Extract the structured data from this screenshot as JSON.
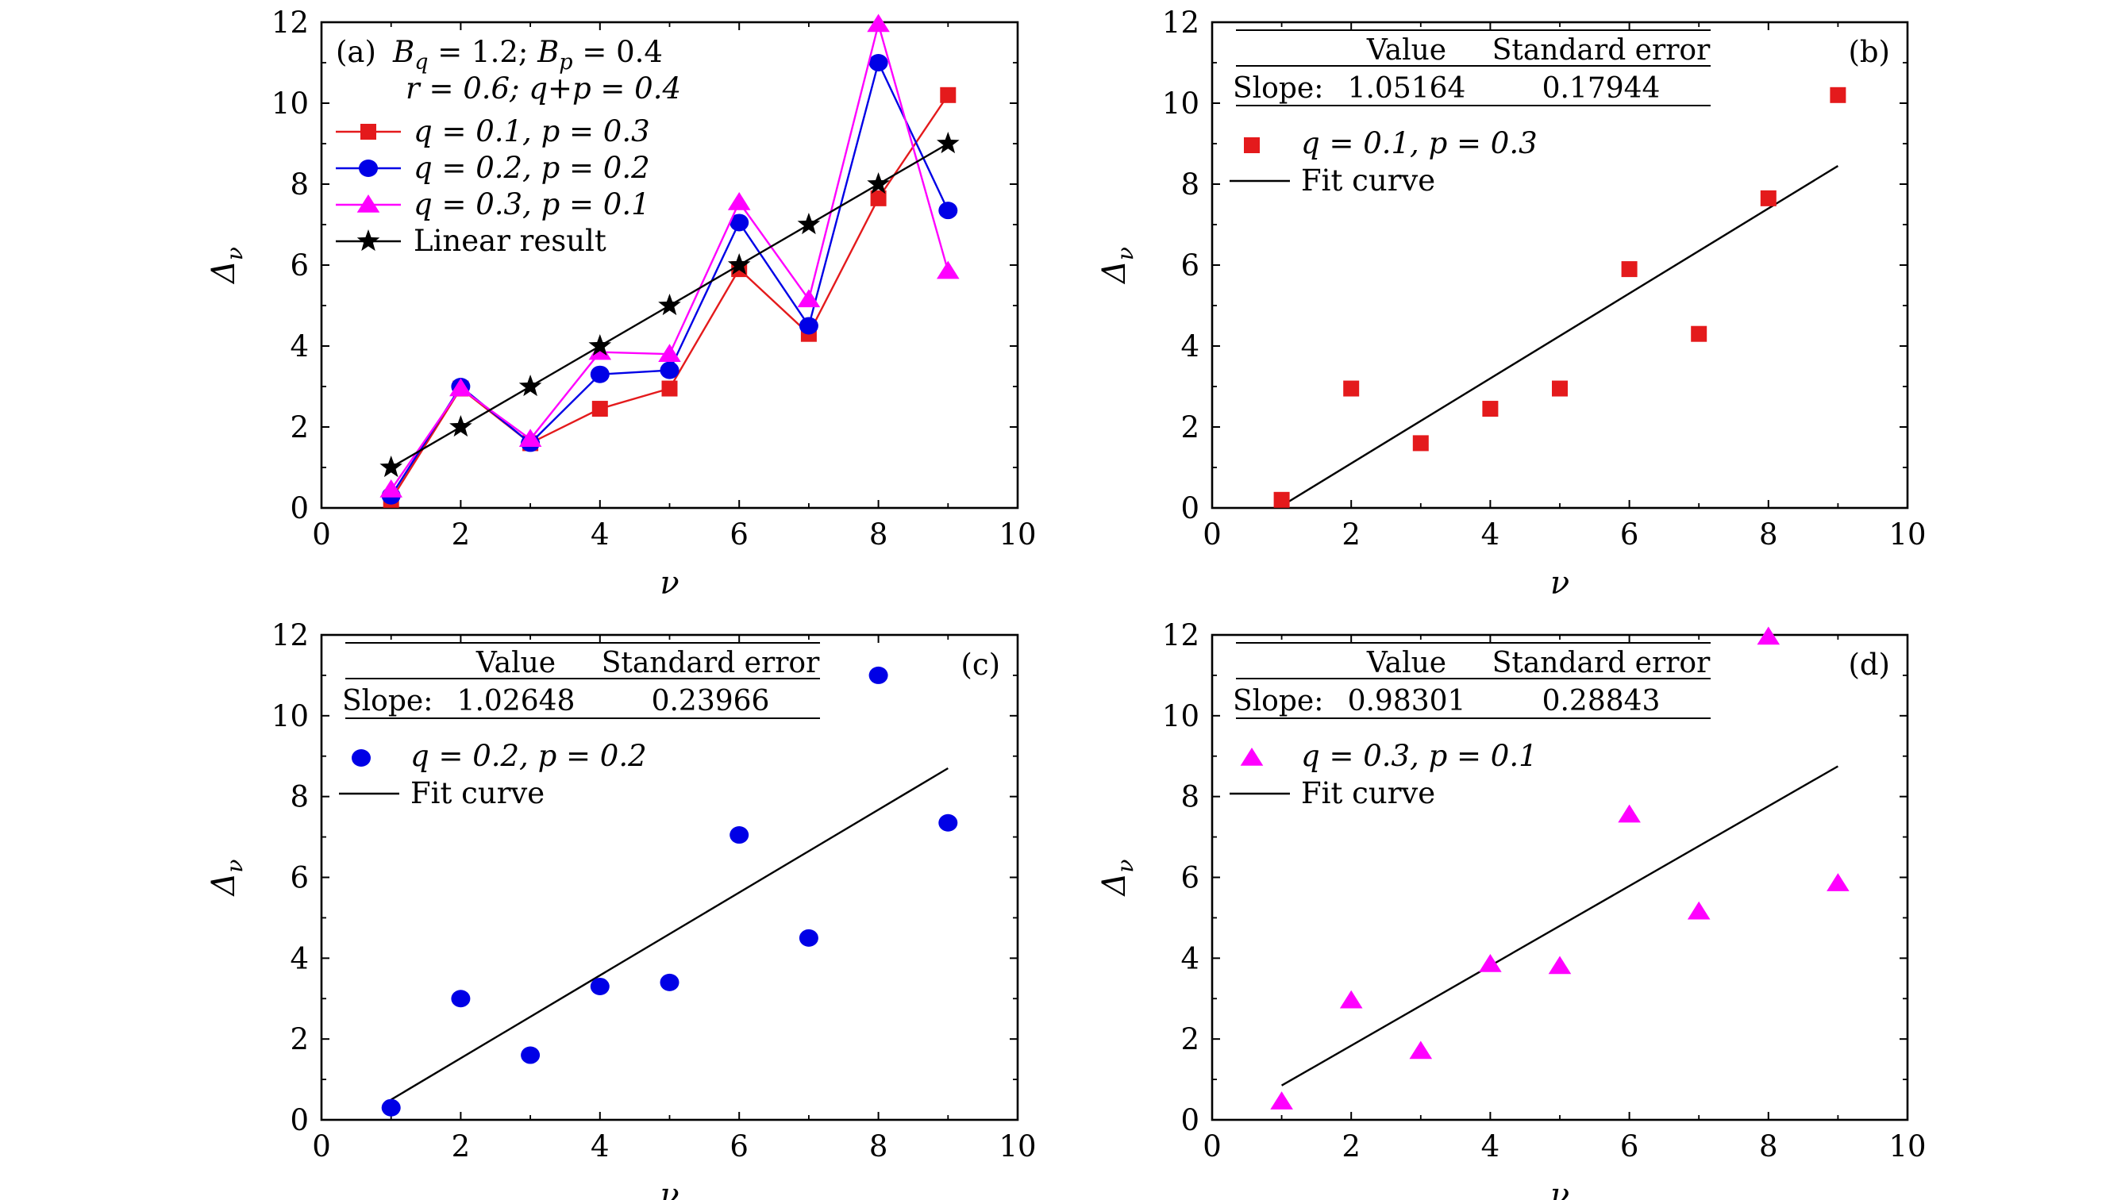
{
  "figure": {
    "panels": [
      {
        "tag": "(a)",
        "params_line1": "Bq = 1.2; Bp = 0.4",
        "params_line2": "r = 0.6; q+p = 0.4"
      },
      {
        "tag": "(b)",
        "table": {
          "col1": "Value",
          "col2": "Standard error",
          "row_label": "Slope:",
          "value": "1.05164",
          "error": "0.17944"
        },
        "legend": {
          "series": "q = 0.1, p = 0.3",
          "fit": "Fit curve"
        }
      },
      {
        "tag": "(c)",
        "table": {
          "col1": "Value",
          "col2": "Standard error",
          "row_label": "Slope:",
          "value": "1.02648",
          "error": "0.23966"
        },
        "legend": {
          "series": "q = 0.2, p = 0.2",
          "fit": "Fit curve"
        }
      },
      {
        "tag": "(d)",
        "table": {
          "col1": "Value",
          "col2": "Standard error",
          "row_label": "Slope:",
          "value": "0.98301",
          "error": "0.28843"
        },
        "legend": {
          "series": "q = 0.3, p = 0.1",
          "fit": "Fit curve"
        }
      }
    ]
  },
  "chart_data": [
    {
      "panel": "(a)",
      "type": "line",
      "xlabel": "ν",
      "ylabel": "Δν",
      "xlim": [
        0,
        10
      ],
      "ylim": [
        0,
        12
      ],
      "xticks": [
        0,
        2,
        4,
        6,
        8,
        10
      ],
      "yticks": [
        0,
        2,
        4,
        6,
        8,
        10,
        12
      ],
      "legend_position": "top-left",
      "grid": false,
      "series": [
        {
          "name": "q = 0.1, p = 0.3",
          "color": "#e41a1c",
          "marker": "square",
          "x": [
            1,
            2,
            3,
            4,
            5,
            6,
            7,
            8,
            9
          ],
          "values": [
            0.2,
            2.95,
            1.6,
            2.45,
            2.95,
            5.9,
            4.3,
            7.65,
            10.2
          ]
        },
        {
          "name": "q = 0.2, p = 0.2",
          "color": "#0000e6",
          "marker": "circle",
          "x": [
            1,
            2,
            3,
            4,
            5,
            6,
            7,
            8,
            9
          ],
          "values": [
            0.3,
            3.0,
            1.6,
            3.3,
            3.4,
            7.05,
            4.5,
            11.0,
            7.35
          ]
        },
        {
          "name": "q = 0.3, p = 0.1",
          "color": "#ff00ff",
          "marker": "triangle",
          "x": [
            1,
            2,
            3,
            4,
            5,
            6,
            7,
            8,
            9
          ],
          "values": [
            0.45,
            2.95,
            1.7,
            3.85,
            3.8,
            7.55,
            5.15,
            11.95,
            5.85
          ]
        },
        {
          "name": "Linear result",
          "color": "#000000",
          "marker": "star",
          "x": [
            1,
            2,
            3,
            4,
            5,
            6,
            7,
            8,
            9
          ],
          "values": [
            1,
            2,
            3,
            4,
            5,
            6,
            7,
            8,
            9
          ]
        }
      ]
    },
    {
      "panel": "(b)",
      "type": "scatter",
      "xlabel": "ν",
      "ylabel": "Δν",
      "xlim": [
        0,
        10
      ],
      "ylim": [
        0,
        12
      ],
      "xticks": [
        0,
        2,
        4,
        6,
        8,
        10
      ],
      "yticks": [
        0,
        2,
        4,
        6,
        8,
        10,
        12
      ],
      "grid": false,
      "series": [
        {
          "name": "q = 0.1, p = 0.3",
          "color": "#e41a1c",
          "marker": "square",
          "x": [
            1,
            2,
            3,
            4,
            5,
            6,
            7,
            8,
            9
          ],
          "values": [
            0.2,
            2.95,
            1.6,
            2.45,
            2.95,
            5.9,
            4.3,
            7.65,
            10.2
          ]
        }
      ],
      "fit": {
        "name": "Fit curve",
        "color": "#000000",
        "x": [
          1,
          9
        ],
        "values": [
          0.05,
          8.45
        ]
      }
    },
    {
      "panel": "(c)",
      "type": "scatter",
      "xlabel": "ν",
      "ylabel": "Δν",
      "xlim": [
        0,
        10
      ],
      "ylim": [
        0,
        12
      ],
      "xticks": [
        0,
        2,
        4,
        6,
        8,
        10
      ],
      "yticks": [
        0,
        2,
        4,
        6,
        8,
        10,
        12
      ],
      "grid": false,
      "series": [
        {
          "name": "q = 0.2, p = 0.2",
          "color": "#0000e6",
          "marker": "circle",
          "x": [
            1,
            2,
            3,
            4,
            5,
            6,
            7,
            8,
            9
          ],
          "values": [
            0.3,
            3.0,
            1.6,
            3.3,
            3.4,
            7.05,
            4.5,
            11.0,
            7.35
          ]
        }
      ],
      "fit": {
        "name": "Fit curve",
        "color": "#000000",
        "x": [
          1,
          9
        ],
        "values": [
          0.5,
          8.7
        ]
      }
    },
    {
      "panel": "(d)",
      "type": "scatter",
      "xlabel": "ν",
      "ylabel": "Δν",
      "xlim": [
        0,
        10
      ],
      "ylim": [
        0,
        12
      ],
      "xticks": [
        0,
        2,
        4,
        6,
        8,
        10
      ],
      "yticks": [
        0,
        2,
        4,
        6,
        8,
        10,
        12
      ],
      "grid": false,
      "series": [
        {
          "name": "q = 0.3, p = 0.1",
          "color": "#ff00ff",
          "marker": "triangle",
          "x": [
            1,
            2,
            3,
            4,
            5,
            6,
            7,
            8,
            9
          ],
          "values": [
            0.45,
            2.95,
            1.7,
            3.85,
            3.8,
            7.55,
            5.15,
            11.95,
            5.85
          ]
        }
      ],
      "fit": {
        "name": "Fit curve",
        "color": "#000000",
        "x": [
          1,
          9
        ],
        "values": [
          0.85,
          8.75
        ]
      }
    }
  ]
}
